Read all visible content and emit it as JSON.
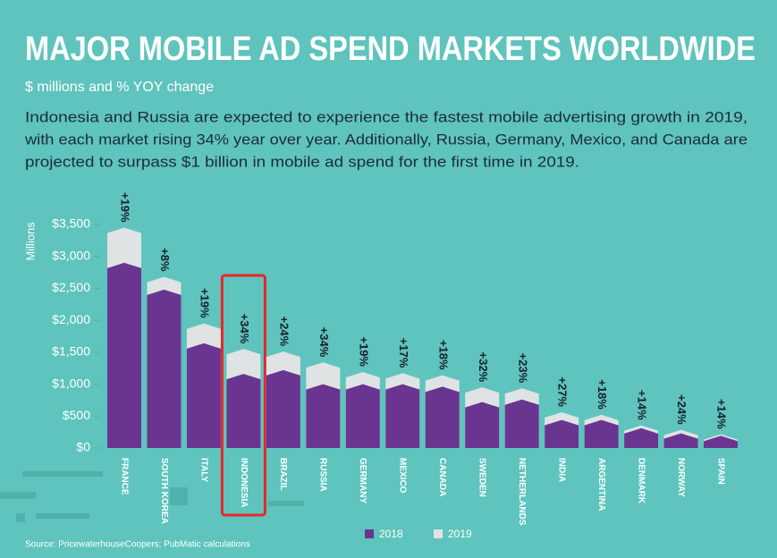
{
  "chart_data": {
    "type": "bar",
    "title": "MAJOR MOBILE AD SPEND MARKETS WORLDWIDE",
    "subtitle": "$ millions and % YOY change",
    "description": [
      "Indonesia and Russia are expected to experience the fastest mobile advertising growth in 2019,",
      "with each market rising 34% year over year. Additionally, Russia, Germany, Mexico, and Canada are",
      "projected to surpass $1 billion in mobile ad spend for the first time in 2019."
    ],
    "y_label": "Millions",
    "categories": [
      "FRANCE",
      "SOUTH KOREA",
      "ITALY",
      "INDONESIA",
      "BRAZIL",
      "RUSSIA",
      "GERMANY",
      "MEXICO",
      "CANADA",
      "SWEDEN",
      "NETHERLANDS",
      "INDIA",
      "ARGENTINA",
      "DENMARK",
      "NORWAY",
      "SPAIN"
    ],
    "series": [
      {
        "name": "2018",
        "color": "#6a3590",
        "values": [
          2900,
          2480,
          1640,
          1160,
          1220,
          1000,
          1000,
          1000,
          960,
          720,
          760,
          440,
          440,
          310,
          230,
          190
        ]
      },
      {
        "name": "2019",
        "color": "#dfe3e4",
        "values": [
          3450,
          2680,
          1950,
          1550,
          1510,
          1340,
          1190,
          1170,
          1140,
          950,
          935,
          560,
          520,
          355,
          285,
          215
        ]
      }
    ],
    "growth_labels": [
      "+19%",
      "+8%",
      "+19%",
      "+34%",
      "+24%",
      "+34%",
      "+19%",
      "+17%",
      "+18%",
      "+32%",
      "+23%",
      "+27%",
      "+18%",
      "+14%",
      "+24%",
      "+14%"
    ],
    "highlight": "INDONESIA",
    "ylim": [
      0,
      3500
    ],
    "yticks": [
      {
        "value": 0,
        "label": "$0"
      },
      {
        "value": 500,
        "label": "$500"
      },
      {
        "value": 1000,
        "label": "$1,000"
      },
      {
        "value": 1500,
        "label": "$1,500"
      },
      {
        "value": 2000,
        "label": "$2,000"
      },
      {
        "value": 2500,
        "label": "$2,500"
      },
      {
        "value": 3000,
        "label": "$3,000"
      },
      {
        "value": 3500,
        "label": "$3,500"
      }
    ],
    "grid": false,
    "source": "Source: PricewaterhouseCoopers; PubMatic calculations"
  }
}
